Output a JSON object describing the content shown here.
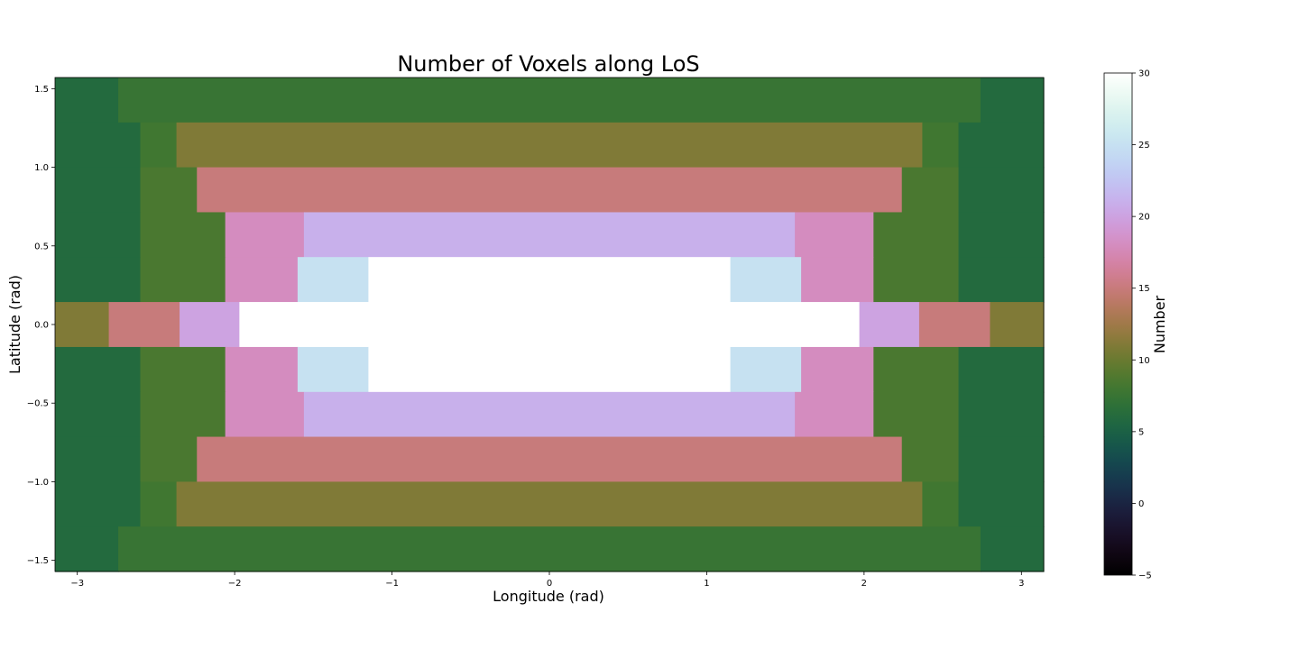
{
  "chart_data": {
    "type": "heatmap",
    "title": "Number of Voxels along LoS",
    "xlabel": "Longitude (rad)",
    "ylabel": "Latitude (rad)",
    "colorbar_label": "Number",
    "colormap": "cubehelix",
    "xlim": [
      -3.14159,
      3.14159
    ],
    "ylim": [
      -1.5708,
      1.5708
    ],
    "clim": [
      -5,
      30
    ],
    "grid": false,
    "x_ticks": [
      -3,
      -2,
      -1,
      0,
      1,
      2,
      3
    ],
    "x_tick_labels": [
      "−3",
      "−2",
      "−1",
      "0",
      "1",
      "2",
      "3"
    ],
    "y_ticks": [
      -1.5,
      -1.0,
      -0.5,
      0.0,
      0.5,
      1.0,
      1.5
    ],
    "y_tick_labels": [
      "−1.5",
      "−1.0",
      "−0.5",
      "0.0",
      "0.5",
      "1.0",
      "1.5"
    ],
    "colorbar_ticks": [
      -5,
      0,
      5,
      10,
      15,
      20,
      25,
      30
    ],
    "colorbar_tick_labels": [
      "−5",
      "0",
      "5",
      "10",
      "15",
      "20",
      "25",
      "30"
    ],
    "lat_bands": [
      {
        "lat_min": 1.285,
        "lat_max": 1.5708,
        "segments": [
          {
            "lon": [
              -3.14159,
              -2.74
            ],
            "value": 6
          },
          {
            "lon": [
              -2.74,
              2.74
            ],
            "value": 7.5
          },
          {
            "lon": [
              2.74,
              3.14159
            ],
            "value": 6
          }
        ]
      },
      {
        "lat_min": 1.0,
        "lat_max": 1.285,
        "segments": [
          {
            "lon": [
              -3.14159,
              -2.6
            ],
            "value": 6
          },
          {
            "lon": [
              -2.6,
              -2.37
            ],
            "value": 8
          },
          {
            "lon": [
              -2.37,
              2.37
            ],
            "value": 11
          },
          {
            "lon": [
              2.37,
              2.6
            ],
            "value": 8
          },
          {
            "lon": [
              2.6,
              3.14159
            ],
            "value": 6
          }
        ]
      },
      {
        "lat_min": 0.714,
        "lat_max": 1.0,
        "segments": [
          {
            "lon": [
              -3.14159,
              -2.6
            ],
            "value": 6
          },
          {
            "lon": [
              -2.6,
              -2.24
            ],
            "value": 8.5
          },
          {
            "lon": [
              -2.24,
              2.24
            ],
            "value": 15
          },
          {
            "lon": [
              2.24,
              2.6
            ],
            "value": 8.5
          },
          {
            "lon": [
              2.6,
              3.14159
            ],
            "value": 6
          }
        ]
      },
      {
        "lat_min": 0.429,
        "lat_max": 0.714,
        "segments": [
          {
            "lon": [
              -3.14159,
              -2.6
            ],
            "value": 6
          },
          {
            "lon": [
              -2.6,
              -2.06
            ],
            "value": 8.5
          },
          {
            "lon": [
              -2.06,
              -1.56
            ],
            "value": 18
          },
          {
            "lon": [
              -1.56,
              1.56
            ],
            "value": 21
          },
          {
            "lon": [
              1.56,
              2.06
            ],
            "value": 18
          },
          {
            "lon": [
              2.06,
              2.6
            ],
            "value": 8.5
          },
          {
            "lon": [
              2.6,
              3.14159
            ],
            "value": 6
          }
        ]
      },
      {
        "lat_min": 0.143,
        "lat_max": 0.429,
        "segments": [
          {
            "lon": [
              -3.14159,
              -2.6
            ],
            "value": 6
          },
          {
            "lon": [
              -2.6,
              -2.06
            ],
            "value": 8.5
          },
          {
            "lon": [
              -2.06,
              -1.6
            ],
            "value": 18
          },
          {
            "lon": [
              -1.6,
              -1.15
            ],
            "value": 25
          },
          {
            "lon": [
              -1.15,
              1.15
            ],
            "value": 30
          },
          {
            "lon": [
              1.15,
              1.6
            ],
            "value": 25
          },
          {
            "lon": [
              1.6,
              2.06
            ],
            "value": 18
          },
          {
            "lon": [
              2.06,
              2.6
            ],
            "value": 8.5
          },
          {
            "lon": [
              2.6,
              3.14159
            ],
            "value": 6
          }
        ]
      },
      {
        "lat_min": -0.143,
        "lat_max": 0.143,
        "segments": [
          {
            "lon": [
              -3.14159,
              -2.8
            ],
            "value": 11
          },
          {
            "lon": [
              -2.8,
              -2.35
            ],
            "value": 15
          },
          {
            "lon": [
              -2.35,
              -1.97
            ],
            "value": 20
          },
          {
            "lon": [
              -1.97,
              1.97
            ],
            "value": 30
          },
          {
            "lon": [
              1.97,
              2.35
            ],
            "value": 20
          },
          {
            "lon": [
              2.35,
              2.8
            ],
            "value": 15
          },
          {
            "lon": [
              2.8,
              3.14159
            ],
            "value": 11
          }
        ]
      },
      {
        "lat_min": -0.429,
        "lat_max": -0.143,
        "segments": [
          {
            "lon": [
              -3.14159,
              -2.6
            ],
            "value": 6
          },
          {
            "lon": [
              -2.6,
              -2.06
            ],
            "value": 8.5
          },
          {
            "lon": [
              -2.06,
              -1.6
            ],
            "value": 18
          },
          {
            "lon": [
              -1.6,
              -1.15
            ],
            "value": 25
          },
          {
            "lon": [
              -1.15,
              1.15
            ],
            "value": 30
          },
          {
            "lon": [
              1.15,
              1.6
            ],
            "value": 25
          },
          {
            "lon": [
              1.6,
              2.06
            ],
            "value": 18
          },
          {
            "lon": [
              2.06,
              2.6
            ],
            "value": 8.5
          },
          {
            "lon": [
              2.6,
              3.14159
            ],
            "value": 6
          }
        ]
      },
      {
        "lat_min": -0.714,
        "lat_max": -0.429,
        "segments": [
          {
            "lon": [
              -3.14159,
              -2.6
            ],
            "value": 6
          },
          {
            "lon": [
              -2.6,
              -2.06
            ],
            "value": 8.5
          },
          {
            "lon": [
              -2.06,
              -1.56
            ],
            "value": 18
          },
          {
            "lon": [
              -1.56,
              1.56
            ],
            "value": 21
          },
          {
            "lon": [
              1.56,
              2.06
            ],
            "value": 18
          },
          {
            "lon": [
              2.06,
              2.6
            ],
            "value": 8.5
          },
          {
            "lon": [
              2.6,
              3.14159
            ],
            "value": 6
          }
        ]
      },
      {
        "lat_min": -1.0,
        "lat_max": -0.714,
        "segments": [
          {
            "lon": [
              -3.14159,
              -2.6
            ],
            "value": 6
          },
          {
            "lon": [
              -2.6,
              -2.24
            ],
            "value": 8.5
          },
          {
            "lon": [
              -2.24,
              2.24
            ],
            "value": 15
          },
          {
            "lon": [
              2.24,
              2.6
            ],
            "value": 8.5
          },
          {
            "lon": [
              2.6,
              3.14159
            ],
            "value": 6
          }
        ]
      },
      {
        "lat_min": -1.285,
        "lat_max": -1.0,
        "segments": [
          {
            "lon": [
              -3.14159,
              -2.6
            ],
            "value": 6
          },
          {
            "lon": [
              -2.6,
              -2.37
            ],
            "value": 8
          },
          {
            "lon": [
              -2.37,
              2.37
            ],
            "value": 11
          },
          {
            "lon": [
              2.37,
              2.6
            ],
            "value": 8
          },
          {
            "lon": [
              2.6,
              3.14159
            ],
            "value": 6
          }
        ]
      },
      {
        "lat_min": -1.5708,
        "lat_max": -1.285,
        "segments": [
          {
            "lon": [
              -3.14159,
              -2.74
            ],
            "value": 6
          },
          {
            "lon": [
              -2.74,
              2.74
            ],
            "value": 7.5
          },
          {
            "lon": [
              2.74,
              3.14159
            ],
            "value": 6
          }
        ]
      }
    ]
  }
}
